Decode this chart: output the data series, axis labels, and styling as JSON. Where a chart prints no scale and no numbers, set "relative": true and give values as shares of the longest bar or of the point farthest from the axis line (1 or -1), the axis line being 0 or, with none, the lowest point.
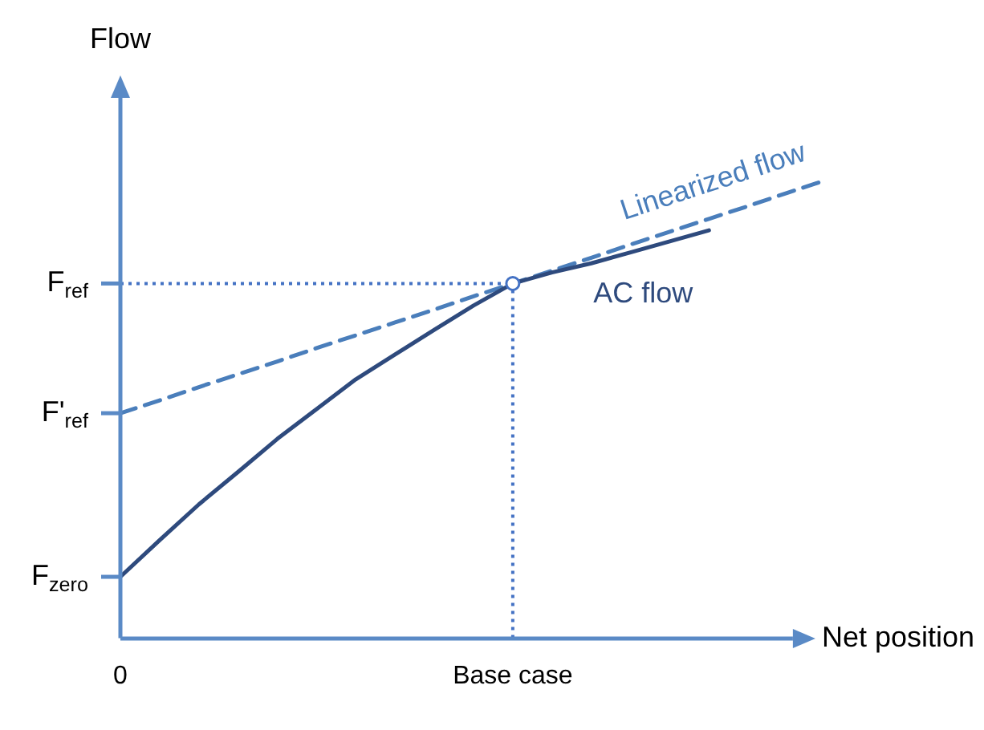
{
  "chart_data": {
    "type": "line",
    "relative": true,
    "xlabel": "Net position",
    "ylabel": "Flow",
    "legend": false,
    "categories": [
      "0",
      null,
      null,
      null,
      null,
      null,
      null,
      null,
      null,
      null,
      "Base case",
      null,
      null,
      null,
      null,
      null,
      null,
      null,
      null
    ],
    "series": [
      {
        "name": "AC flow",
        "color": "#2e4a7d",
        "line_style": "solid",
        "values": [
          0.134,
          0.214,
          0.292,
          0.363,
          0.435,
          0.5,
          0.565,
          0.619,
          0.673,
          0.726,
          0.774,
          0.798,
          0.818,
          0.842,
          0.866,
          0.89,
          null,
          null,
          null
        ]
      },
      {
        "name": "Linearized flow",
        "color": "#4a7ebb",
        "line_style": "dashed",
        "values": [
          0.491,
          0.519,
          0.548,
          0.576,
          0.604,
          0.633,
          0.661,
          0.689,
          0.717,
          0.746,
          0.774,
          0.802,
          0.83,
          0.859,
          0.887,
          0.915,
          0.943,
          0.972,
          1
        ]
      }
    ],
    "ref_lines": [
      {
        "axis": "y",
        "value": 0.774,
        "label": "F$_{ref}$",
        "color": "#4472c4",
        "line_style": "dotted"
      },
      {
        "axis": "x",
        "value": "Base case",
        "color": "#4472c4",
        "line_style": "dotted"
      }
    ],
    "annotations": [
      {
        "text": "F'$_{ref}$",
        "x": "0",
        "y": 0.491
      },
      {
        "text": "F$_{zero}$",
        "x": "0",
        "y": 0.134
      }
    ]
  }
}
